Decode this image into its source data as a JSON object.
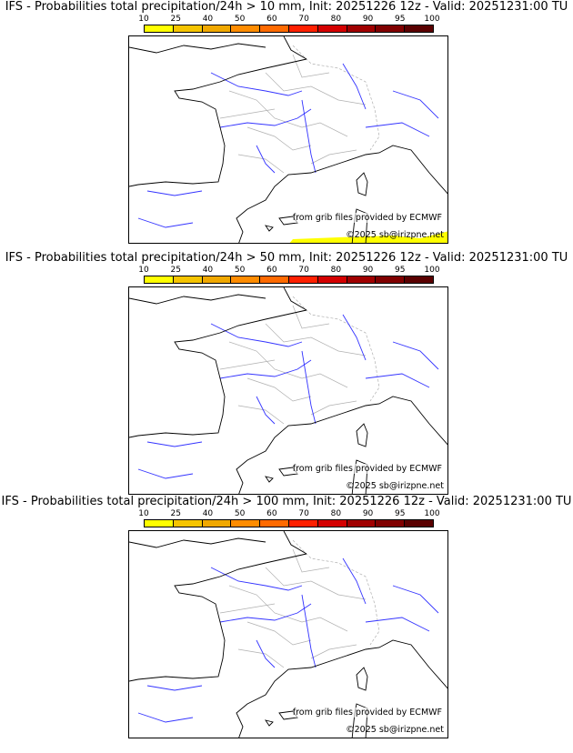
{
  "panels": [
    {
      "title": "IFS - Probabilities total precipitation/24h > 10 mm, Init: 20251226 12z - Valid: 20251231:00 TU",
      "has_precip": true
    },
    {
      "title": "IFS - Probabilities total precipitation/24h > 50 mm, Init: 20251226 12z - Valid: 20251231:00 TU",
      "has_precip": false
    },
    {
      "title": "IFS - Probabilities total precipitation/24h > 100 mm, Init: 20251226 12z - Valid: 20251231:00 TU",
      "has_precip": false
    }
  ],
  "colorbar": {
    "ticks": [
      "10",
      "25",
      "40",
      "50",
      "60",
      "70",
      "80",
      "90",
      "95",
      "100"
    ],
    "colors": [
      "#ffff00",
      "#f5c400",
      "#f0a800",
      "#ff8c00",
      "#ff6a00",
      "#ff2000",
      "#d40000",
      "#a00000",
      "#800000",
      "#5a0000"
    ]
  },
  "source_text": "from grib files provided by ECMWF",
  "copyright": "©2025 sb@irizpne.net",
  "line_colors": {
    "coast": "#000000",
    "rivers": "#3333ff",
    "borders": "#b0b0b0"
  }
}
